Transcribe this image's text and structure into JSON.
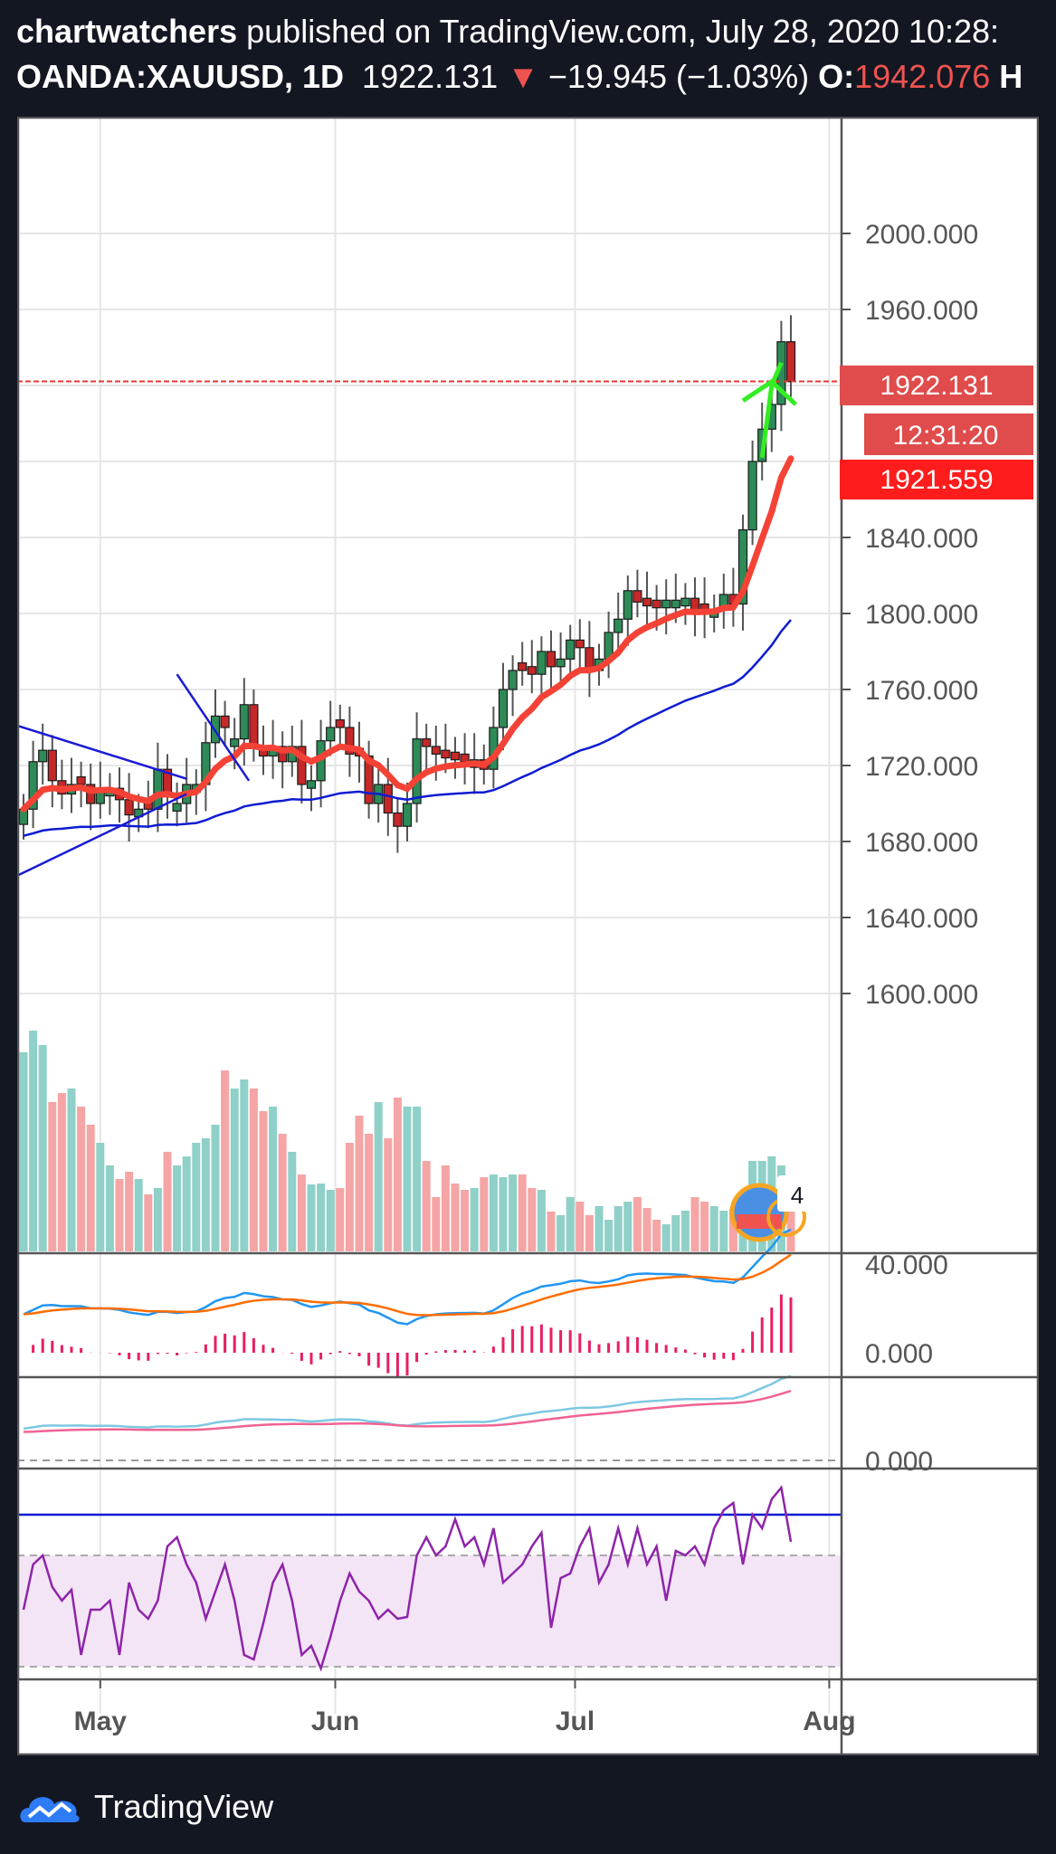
{
  "header": {
    "author": "chartwatchers",
    "published_text": "published on TradingView.com, July 28, 2020 10:28:",
    "symbol": "OANDA:XAUUSD, 1D",
    "last_price": "1922.131",
    "change_arrow": "▼",
    "change": "−19.945 (−1.03%)",
    "open_label": "O:",
    "open_value": "1942.076",
    "high_label": "H"
  },
  "price_tags": {
    "last_price": "1922.131",
    "countdown": "12:31:20",
    "bid": "1921.559"
  },
  "volume_badge": "4",
  "footer": {
    "brand": "TradingView"
  },
  "colors": {
    "background": "#131722",
    "up_candle": "#26a69a",
    "down_candle": "#ef5350",
    "ema_fast": "#f44336",
    "sma_slow": "#0d1cd2",
    "trendline": "#1a1ad6",
    "arrow": "#33ee22",
    "macd": "#2196f3",
    "signal": "#ff6d00",
    "histogram": "#e91e63",
    "stoch_k": "#7ec8e3",
    "stoch_d": "#f06292",
    "rsi": "#8e24aa",
    "rsi_band": "#f3e5f5"
  },
  "chart_data": {
    "type": "candlestick",
    "symbol": "OANDA:XAUUSD",
    "timeframe": "1D",
    "price_axis": {
      "range": [
        1578,
        2030
      ],
      "ticks": [
        "1600.000",
        "1640.000",
        "1680.000",
        "1720.000",
        "1760.000",
        "1800.000",
        "1840.000",
        "1960.000",
        "2000.000"
      ]
    },
    "time_axis": {
      "labels": [
        {
          "text": "May",
          "date": "2020-05-01"
        },
        {
          "text": "Jun",
          "date": "2020-06-01"
        },
        {
          "text": "Jul",
          "date": "2020-07-01"
        },
        {
          "text": "Aug",
          "date": "2020-08-01"
        }
      ]
    },
    "candles_close": [
      1697,
      1722,
      1728,
      1712,
      1705,
      1710,
      1710,
      1700,
      1708,
      1708,
      1702,
      1694,
      1697,
      1697,
      1718,
      1706,
      1700,
      1710,
      1710,
      1732,
      1746,
      1740,
      1734,
      1752,
      1730,
      1725,
      1730,
      1722,
      1730,
      1710,
      1712,
      1733,
      1740,
      1740,
      1726,
      1725,
      1700,
      1710,
      1695,
      1688,
      1700,
      1734,
      1730,
      1726,
      1724,
      1723,
      1722,
      1723,
      1718,
      1740,
      1760,
      1770,
      1770,
      1768,
      1780,
      1772,
      1776,
      1786,
      1782,
      1770,
      1776,
      1790,
      1797,
      1812,
      1806,
      1804,
      1803,
      1807,
      1807,
      1808,
      1800,
      1801,
      1802,
      1810,
      1805,
      1844,
      1880,
      1897,
      1910,
      1943,
      1922
    ],
    "candles_direction": [
      "up",
      "up",
      "up",
      "down",
      "down",
      "up",
      "down",
      "down",
      "up",
      "up",
      "down",
      "down",
      "up",
      "down",
      "up",
      "down",
      "up",
      "up",
      "up",
      "up",
      "up",
      "down",
      "up",
      "up",
      "down",
      "down",
      "up",
      "down",
      "up",
      "down",
      "up",
      "up",
      "up",
      "down",
      "down",
      "down",
      "down",
      "up",
      "down",
      "down",
      "up",
      "up",
      "down",
      "down",
      "down",
      "down",
      "down",
      "up",
      "down",
      "up",
      "up",
      "up",
      "down",
      "down",
      "up",
      "down",
      "up",
      "up",
      "down",
      "down",
      "up",
      "up",
      "up",
      "up",
      "down",
      "down",
      "down",
      "up",
      "up",
      "up",
      "down",
      "down",
      "up",
      "up",
      "down",
      "up",
      "up",
      "up",
      "up",
      "up",
      "down"
    ],
    "ema_fast_last": 1864,
    "sma_slow_last": 1784,
    "horizontal_line": 1922.131,
    "volume": {
      "direction": [
        "up",
        "up",
        "up",
        "down",
        "down",
        "up",
        "down",
        "down",
        "up",
        "up",
        "down",
        "down",
        "up",
        "down",
        "up",
        "down",
        "up",
        "up",
        "up",
        "up",
        "up",
        "down",
        "up",
        "up",
        "down",
        "down",
        "up",
        "down",
        "up",
        "down",
        "up",
        "up",
        "up",
        "down",
        "down",
        "down",
        "down",
        "up",
        "down",
        "down",
        "up",
        "up",
        "down",
        "down",
        "down",
        "down",
        "down",
        "up",
        "down",
        "up",
        "up",
        "up",
        "down",
        "down",
        "up",
        "down",
        "up",
        "up",
        "down",
        "down",
        "up",
        "up",
        "up",
        "up",
        "down",
        "down",
        "down",
        "up",
        "up",
        "up",
        "down",
        "down",
        "up",
        "up",
        "down",
        "up",
        "up",
        "up",
        "up",
        "up",
        "down"
      ]
    },
    "macd_panel": {
      "ticks": [
        "40.000",
        "0.000"
      ],
      "range": [
        -8,
        45
      ]
    },
    "stoch_panel": {
      "ticks": [
        "0.000"
      ]
    },
    "rsi_panel": {
      "upper_line_color": "#0d1cd2"
    }
  }
}
